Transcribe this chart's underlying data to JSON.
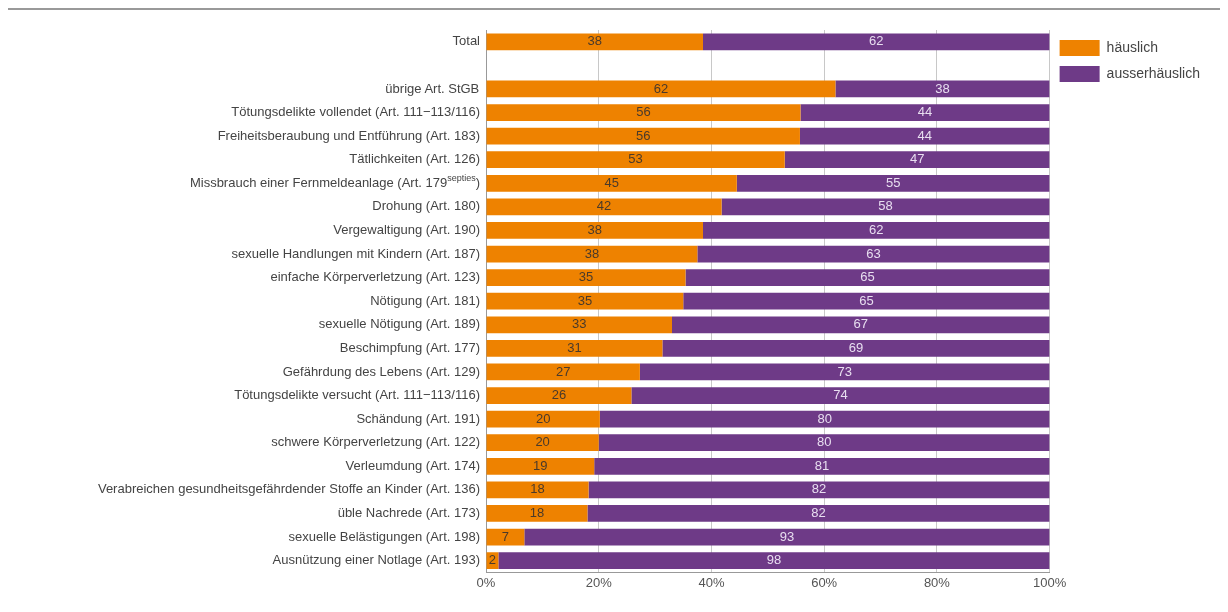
{
  "chart_data": {
    "type": "bar",
    "orientation": "horizontal",
    "stacked": true,
    "categories": [
      "Total",
      null,
      "übrige Art. StGB",
      "Tötungsdelikte vollendet (Art. 111−113/116)",
      "Freiheitsberaubung und Entführung (Art. 183)",
      "Tätlichkeiten (Art. 126)",
      "Missbrauch einer Fernmeldeanlage (Art. 179$^{septies}$)",
      "Drohung (Art. 180)",
      "Vergewaltigung (Art. 190)",
      "sexuelle Handlungen mit Kindern (Art. 187)",
      "einfache Körperverletzung (Art. 123)",
      "Nötigung (Art. 181)",
      "sexuelle Nötigung (Art. 189)",
      "Beschimpfung (Art. 177)",
      "Gefährdung des Lebens (Art. 129)",
      "Tötungsdelikte versucht (Art. 111−113/116)",
      "Schändung (Art. 191)",
      "schwere Körperverletzung (Art. 122)",
      "Verleumdung (Art. 174)",
      "Verabreichen gesundheitsgefährdender Stoffe an Kinder (Art. 136)",
      "üble Nachrede (Art. 173)",
      "sexuelle Belästigungen (Art. 198)",
      "Ausnützung einer Notlage (Art. 193)"
    ],
    "series": [
      {
        "name": "häuslich",
        "color": "#ee8200",
        "values": [
          38.5,
          null,
          62,
          55.8,
          55.7,
          53,
          44.5,
          41.8,
          38.5,
          37.5,
          35.4,
          35,
          33,
          31.3,
          27.3,
          25.8,
          20.2,
          20,
          19.2,
          18.2,
          18,
          6.8,
          2.2
        ],
        "value_labels": [
          "38",
          null,
          "62",
          "56",
          "56",
          "53",
          "45",
          "42",
          "38",
          "38",
          "35",
          "35",
          "33",
          "31",
          "27",
          "26",
          "20",
          "20",
          "19",
          "18",
          "18",
          "7",
          "2"
        ]
      },
      {
        "name": "ausserhäuslich",
        "color": "#6e3a87",
        "values": [
          61.5,
          null,
          38,
          44.2,
          44.3,
          47,
          55.5,
          58.2,
          61.5,
          62.5,
          64.6,
          65,
          67,
          68.7,
          72.7,
          74.2,
          79.8,
          80,
          80.8,
          81.8,
          82,
          93.2,
          97.8
        ],
        "value_labels": [
          "62",
          null,
          "38",
          "44",
          "44",
          "47",
          "55",
          "58",
          "62",
          "63",
          "65",
          "65",
          "67",
          "69",
          "73",
          "74",
          "80",
          "80",
          "81",
          "82",
          "82",
          "93",
          "98"
        ]
      }
    ],
    "xlim": [
      0,
      100
    ],
    "xticks": [
      {
        "value": 0,
        "label": "0%"
      },
      {
        "value": 20,
        "label": "20%"
      },
      {
        "value": 40,
        "label": "40%"
      },
      {
        "value": 60,
        "label": "60%"
      },
      {
        "value": 80,
        "label": "80%"
      },
      {
        "value": 100,
        "label": "100%"
      }
    ],
    "grid": "x",
    "legend": "top right"
  }
}
